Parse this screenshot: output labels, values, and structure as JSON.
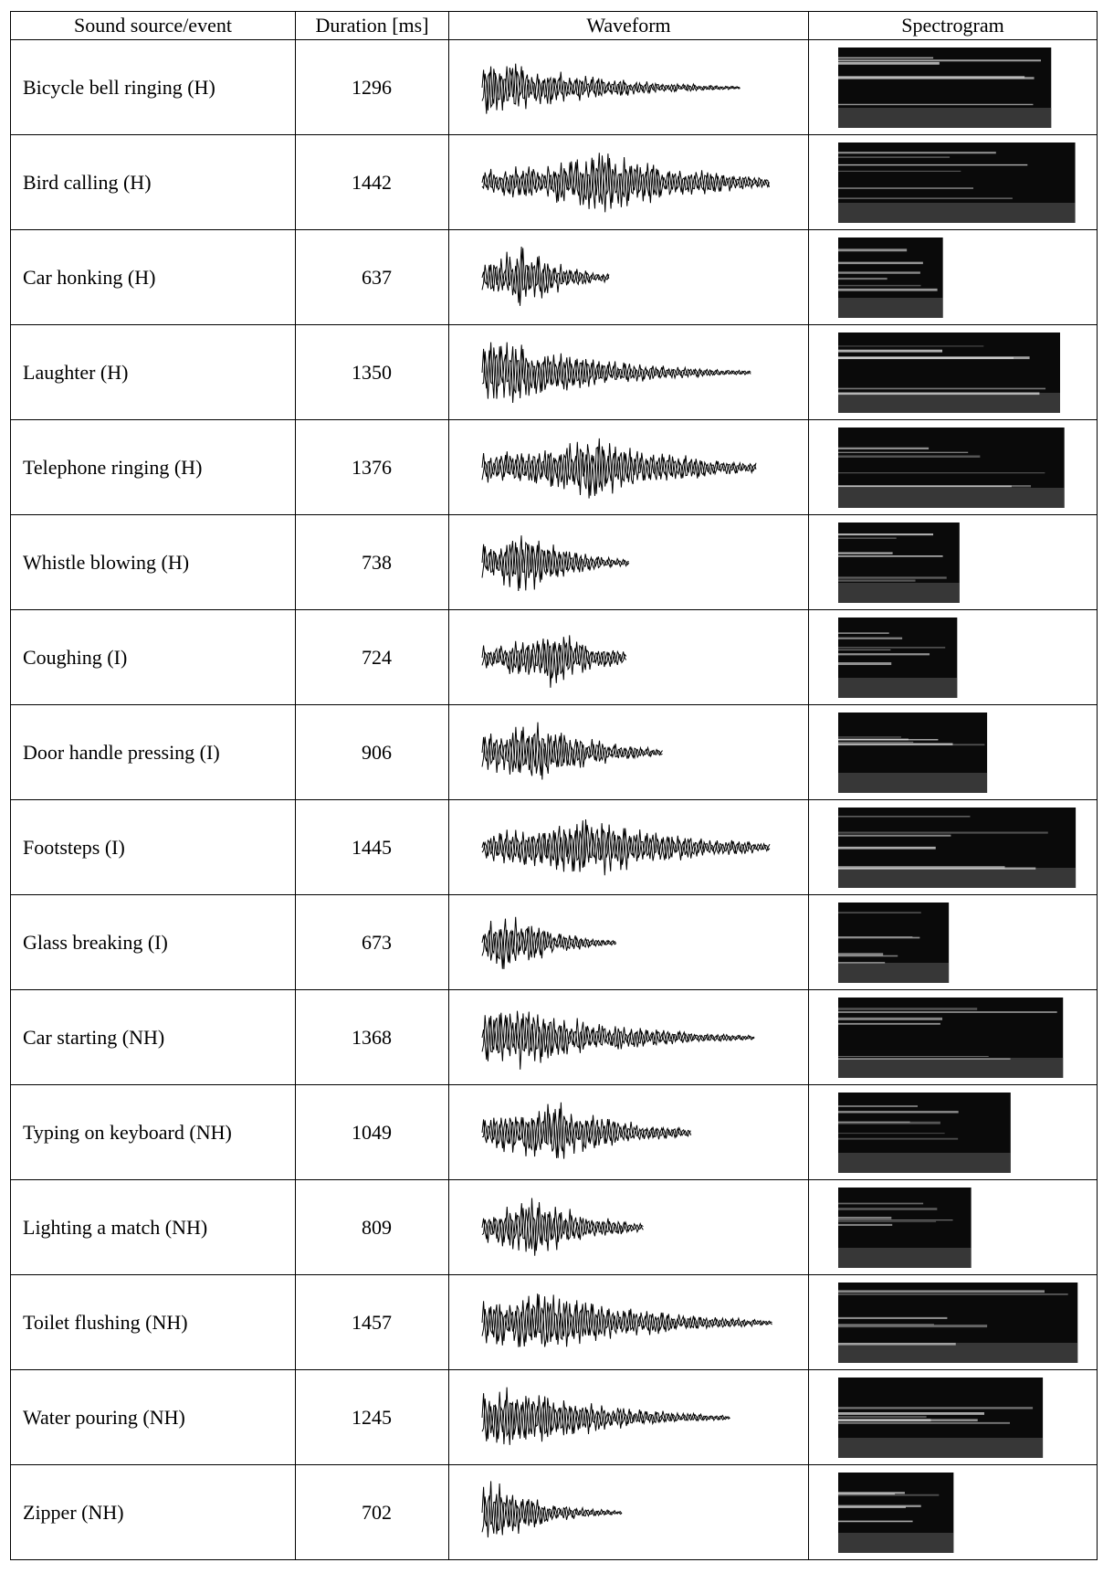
{
  "table": {
    "header": [
      "Sound source/event",
      "Duration [ms]",
      "Waveform",
      "Spectrogram"
    ],
    "rows": [
      [
        "Bicycle bell ringing (H)",
        1296
      ],
      [
        "Bird calling (H)",
        1442
      ],
      [
        "Car honking (H)",
        637
      ],
      [
        "Laughter (H)",
        1350
      ],
      [
        "Telephone ringing (H)",
        1376
      ],
      [
        "Whistle blowing (H)",
        738
      ],
      [
        "Coughing (I)",
        724
      ],
      [
        "Door handle pressing (I)",
        906
      ],
      [
        "Footsteps (I)",
        1445
      ],
      [
        "Glass breaking (I)",
        673
      ],
      [
        "Car starting (NH)",
        1368
      ],
      [
        "Typing on keyboard (NH)",
        1049
      ],
      [
        "Lighting a match (NH)",
        809
      ],
      [
        "Toilet flushing (NH)",
        1457
      ],
      [
        "Water pouring (NH)",
        1245
      ],
      [
        "Zipper (NH)",
        702
      ]
    ]
  }
}
